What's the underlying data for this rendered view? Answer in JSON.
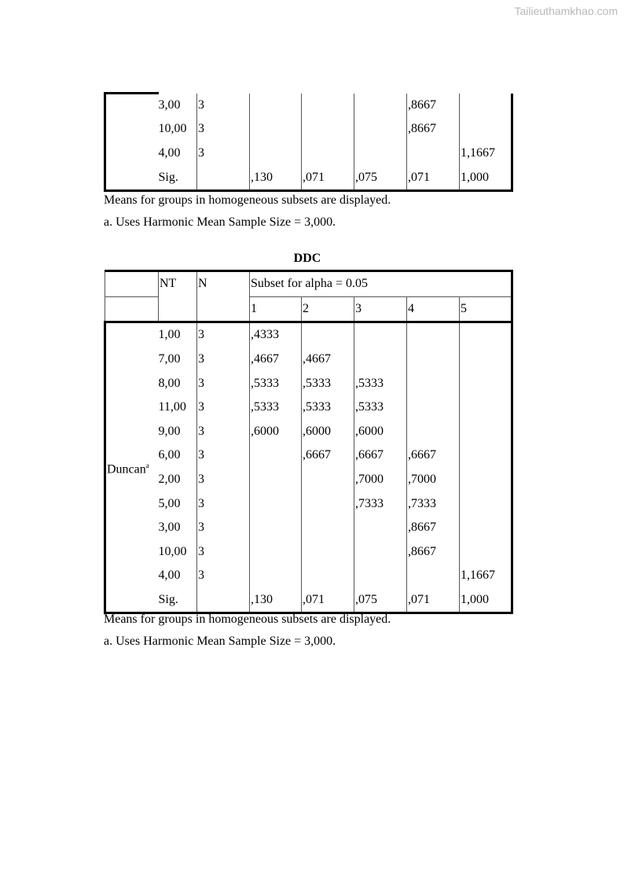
{
  "watermark": "Tailieuthamkhao.com",
  "table1": {
    "rows": [
      {
        "nt": "3,00",
        "n": "3",
        "s": [
          "",
          "",
          "",
          ",8667",
          ""
        ]
      },
      {
        "nt": "10,00",
        "n": "3",
        "s": [
          "",
          "",
          "",
          ",8667",
          ""
        ]
      },
      {
        "nt": "4,00",
        "n": "3",
        "s": [
          "",
          "",
          "",
          "",
          "1,1667"
        ]
      },
      {
        "nt": "Sig.",
        "n": "",
        "s": [
          ",130",
          ",071",
          ",075",
          ",071",
          "1,000"
        ]
      }
    ],
    "note1": "Means for groups in homogeneous subsets are displayed.",
    "note2": "a. Uses Harmonic Mean Sample Size = 3,000."
  },
  "table2": {
    "title": "DDC",
    "col_nt": "NT",
    "col_n": "N",
    "subset_header": "Subset for alpha = 0.05",
    "subsets": [
      "1",
      "2",
      "3",
      "4",
      "5"
    ],
    "method": "Duncan",
    "method_sup": "a",
    "rows": [
      {
        "nt": "1,00",
        "n": "3",
        "s": [
          ",4333",
          "",
          "",
          "",
          ""
        ]
      },
      {
        "nt": "7,00",
        "n": "3",
        "s": [
          ",4667",
          ",4667",
          "",
          "",
          ""
        ]
      },
      {
        "nt": "8,00",
        "n": "3",
        "s": [
          ",5333",
          ",5333",
          ",5333",
          "",
          ""
        ]
      },
      {
        "nt": "11,00",
        "n": "3",
        "s": [
          ",5333",
          ",5333",
          ",5333",
          "",
          ""
        ]
      },
      {
        "nt": "9,00",
        "n": "3",
        "s": [
          ",6000",
          ",6000",
          ",6000",
          "",
          ""
        ]
      },
      {
        "nt": "6,00",
        "n": "3",
        "s": [
          "",
          ",6667",
          ",6667",
          ",6667",
          ""
        ]
      },
      {
        "nt": "2,00",
        "n": "3",
        "s": [
          "",
          "",
          ",7000",
          ",7000",
          ""
        ]
      },
      {
        "nt": "5,00",
        "n": "3",
        "s": [
          "",
          "",
          ",7333",
          ",7333",
          ""
        ]
      },
      {
        "nt": "3,00",
        "n": "3",
        "s": [
          "",
          "",
          "",
          ",8667",
          ""
        ]
      },
      {
        "nt": "10,00",
        "n": "3",
        "s": [
          "",
          "",
          "",
          ",8667",
          ""
        ]
      },
      {
        "nt": "4,00",
        "n": "3",
        "s": [
          "",
          "",
          "",
          "",
          "1,1667"
        ]
      },
      {
        "nt": "Sig.",
        "n": "",
        "s": [
          ",130",
          ",071",
          ",075",
          ",071",
          "1,000"
        ]
      }
    ],
    "note1": "Means for groups in homogeneous subsets are displayed.",
    "note2": "a. Uses Harmonic Mean Sample Size = 3,000."
  }
}
